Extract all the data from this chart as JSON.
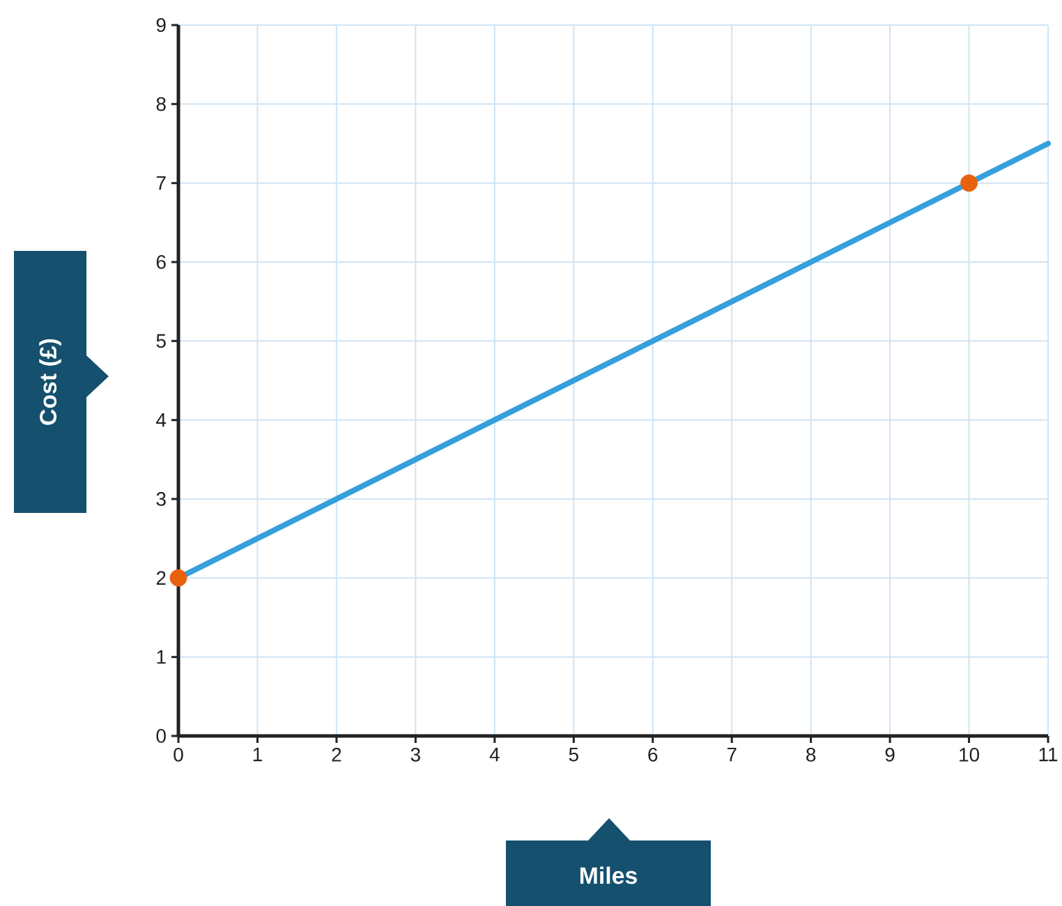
{
  "chart_data": {
    "type": "line",
    "xlabel": "Miles",
    "ylabel": "Cost (£)",
    "xlim": [
      0,
      11
    ],
    "ylim": [
      0,
      9
    ],
    "xticks": [
      0,
      1,
      2,
      3,
      4,
      5,
      6,
      7,
      8,
      9,
      10,
      11
    ],
    "yticks": [
      0,
      1,
      2,
      3,
      4,
      5,
      6,
      7,
      8,
      9
    ],
    "grid": true,
    "series": [
      {
        "color": "#35a0dc",
        "x": [
          0,
          11
        ],
        "values": [
          2,
          7.5
        ],
        "marker": "none",
        "line_style": "solid"
      },
      {
        "type": "scatter",
        "color": "#e8610f",
        "x": [
          0,
          10
        ],
        "values": [
          2,
          7
        ],
        "marker": "circle"
      }
    ]
  }
}
